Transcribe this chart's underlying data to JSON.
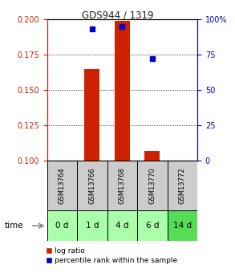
{
  "title": "GDS944 / 1319",
  "samples": [
    "GSM13764",
    "GSM13766",
    "GSM13768",
    "GSM13770",
    "GSM13772"
  ],
  "time_labels": [
    "0 d",
    "1 d",
    "4 d",
    "6 d",
    "14 d"
  ],
  "log_ratio": [
    null,
    0.165,
    0.199,
    0.107,
    null
  ],
  "percentile": [
    null,
    93,
    95,
    72,
    null
  ],
  "ylim_left": [
    0.1,
    0.2
  ],
  "ylim_right": [
    0,
    100
  ],
  "yticks_left": [
    0.1,
    0.125,
    0.15,
    0.175,
    0.2
  ],
  "yticks_right": [
    0,
    25,
    50,
    75,
    100
  ],
  "bar_color": "#cc2200",
  "dot_color": "#0000cc",
  "sample_bg": "#cccccc",
  "time_bg_light": "#aaffaa",
  "time_bg_dark": "#55dd55",
  "title_color": "#222222",
  "left_axis_color": "#cc2200",
  "right_axis_color": "#0000cc",
  "bar_width": 0.5
}
